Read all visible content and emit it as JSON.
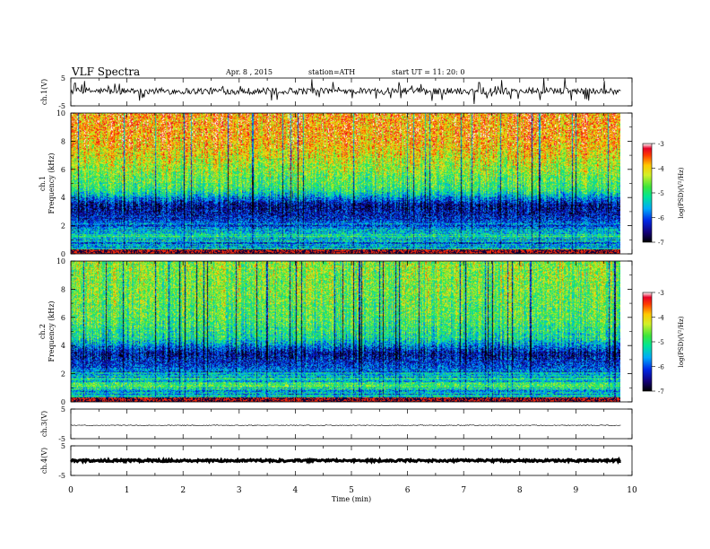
{
  "header": {
    "title": "VLF  Spectra",
    "date": "Apr. 8  , 2015",
    "station": "station=ATH",
    "start_ut": "start  UT  =    11: 20: 0"
  },
  "chart_data": {
    "type": "heatmap",
    "x_axis": {
      "label": "Time  (min)",
      "range": [
        0,
        10
      ],
      "ticks": [
        "0",
        "1",
        "2",
        "3",
        "4",
        "5",
        "6",
        "7",
        "8",
        "9",
        "10"
      ],
      "data_end": 9.8
    },
    "panels": [
      {
        "id": "ch1-waveform",
        "kind": "waveform",
        "ylabel": "ch.1(V)",
        "ylim": [
          -5,
          5
        ],
        "yticks": [
          "5",
          "-5"
        ],
        "baseline": 0.3,
        "noise_amplitude": 1.2,
        "spike_amplitude": 4.5
      },
      {
        "id": "ch1-spectrogram",
        "kind": "spectrogram",
        "ylabel_line1": "ch.1",
        "ylabel_line2": "Frequency  (kHz)",
        "ylim": [
          0,
          10
        ],
        "yticks": [
          "0",
          "2",
          "4",
          "6",
          "8",
          "10"
        ],
        "energy_profile": [
          {
            "f": 0,
            "v": 0.3
          },
          {
            "f": 1.5,
            "v": 0.42
          },
          {
            "f": 2.5,
            "v": 0.2
          },
          {
            "f": 3.5,
            "v": 0.12
          },
          {
            "f": 4.5,
            "v": 0.5
          },
          {
            "f": 6,
            "v": 0.62
          },
          {
            "f": 8,
            "v": 0.8
          },
          {
            "f": 10,
            "v": 0.82
          }
        ],
        "colorbar": {
          "label": "log(PSD)(V²/Hz)",
          "range": [
            -7,
            -3
          ],
          "ticks": [
            "-3",
            "-4",
            "-5",
            "-6",
            "-7"
          ]
        }
      },
      {
        "id": "ch2-spectrogram",
        "kind": "spectrogram",
        "ylabel_line1": "ch.2",
        "ylabel_line2": "Frequency  (kHz)",
        "ylim": [
          0,
          10
        ],
        "yticks": [
          "0",
          "2",
          "4",
          "6",
          "8",
          "10"
        ],
        "energy_profile": [
          {
            "f": 0,
            "v": 0.4
          },
          {
            "f": 1.5,
            "v": 0.45
          },
          {
            "f": 2.5,
            "v": 0.25
          },
          {
            "f": 3.5,
            "v": 0.14
          },
          {
            "f": 4.5,
            "v": 0.45
          },
          {
            "f": 6,
            "v": 0.55
          },
          {
            "f": 8,
            "v": 0.6
          },
          {
            "f": 10,
            "v": 0.62
          }
        ],
        "colorbar": {
          "label": "log(PSD)(V²/Hz)",
          "range": [
            -7,
            -3
          ],
          "ticks": [
            "-3",
            "-4",
            "-5",
            "-6",
            "-7"
          ]
        }
      },
      {
        "id": "ch3-waveform",
        "kind": "waveform",
        "ylabel": "ch.3(V)",
        "ylim": [
          -5,
          5
        ],
        "yticks": [
          "5",
          "-5"
        ],
        "baseline": -0.5,
        "noise_amplitude": 0.15,
        "spike_amplitude": 0
      },
      {
        "id": "ch4-waveform",
        "kind": "waveform",
        "ylabel": "ch.4(V)",
        "ylim": [
          -5,
          5
        ],
        "yticks": [
          "5",
          "-5"
        ],
        "baseline": 0,
        "noise_amplitude": 0.35,
        "spike_amplitude": 0
      }
    ]
  }
}
